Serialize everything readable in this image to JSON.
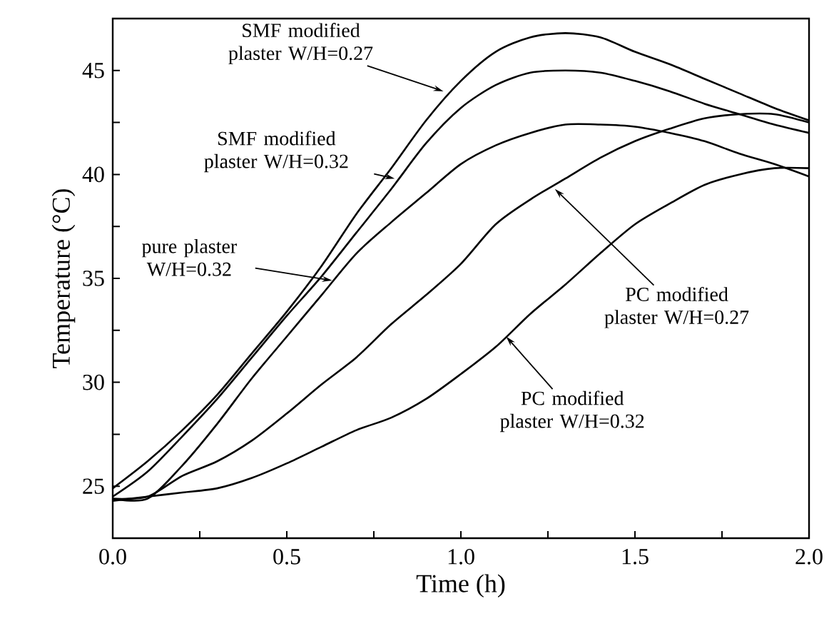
{
  "chart_data": {
    "type": "line",
    "xlabel": "Time (h)",
    "ylabel": "Temperature (°C)",
    "x": [
      0,
      0.1,
      0.2,
      0.3,
      0.4,
      0.5,
      0.6,
      0.7,
      0.8,
      0.9,
      1.0,
      1.1,
      1.2,
      1.3,
      1.4,
      1.5,
      1.6,
      1.7,
      1.8,
      1.9,
      2.0
    ],
    "series": [
      {
        "color": "#000000",
        "values": [
          24.9,
          26.2,
          27.7,
          29.4,
          31.4,
          33.4,
          35.6,
          38.1,
          40.3,
          42.6,
          44.5,
          45.9,
          46.6,
          46.8,
          46.6,
          45.9,
          45.3,
          44.6,
          43.9,
          43.2,
          42.6
        ]
      },
      {
        "color": "#000000",
        "values": [
          24.5,
          25.7,
          27.4,
          29.2,
          31.2,
          33.2,
          35.1,
          37.2,
          39.3,
          41.5,
          43.2,
          44.3,
          44.9,
          45.0,
          44.9,
          44.5,
          44.0,
          43.4,
          42.9,
          42.4,
          42.0
        ]
      },
      {
        "color": "#000000",
        "values": [
          24.4,
          24.4,
          26.0,
          28.0,
          30.2,
          32.2,
          34.2,
          36.2,
          37.7,
          39.1,
          40.5,
          41.4,
          42.0,
          42.4,
          42.4,
          42.3,
          42.0,
          41.6,
          41.0,
          40.5,
          39.9
        ]
      },
      {
        "color": "#000000",
        "values": [
          24.4,
          24.5,
          25.5,
          26.2,
          27.2,
          28.5,
          29.9,
          31.2,
          32.8,
          34.2,
          35.7,
          37.6,
          38.8,
          39.8,
          40.8,
          41.6,
          42.2,
          42.7,
          42.9,
          42.9,
          42.5
        ]
      },
      {
        "color": "#000000",
        "values": [
          24.3,
          24.5,
          24.7,
          24.9,
          25.4,
          26.1,
          26.9,
          27.7,
          28.3,
          29.2,
          30.4,
          31.7,
          33.3,
          34.7,
          36.2,
          37.6,
          38.6,
          39.5,
          40.0,
          40.3,
          40.3
        ]
      }
    ],
    "xlim": [
      0,
      2.0
    ],
    "ylim": [
      22.5,
      47.5
    ],
    "xticks": [
      {
        "value": 0,
        "label": "0.0"
      },
      {
        "value": 0.25,
        "label": null
      },
      {
        "value": 0.5,
        "label": "0.5"
      },
      {
        "value": 0.75,
        "label": null
      },
      {
        "value": 1.0,
        "label": "1.0"
      },
      {
        "value": 1.25,
        "label": null
      },
      {
        "value": 1.5,
        "label": "1.5"
      },
      {
        "value": 1.75,
        "label": null
      },
      {
        "value": 2.0,
        "label": "2.0"
      }
    ],
    "yticks": [
      {
        "value": 22.5,
        "label": null
      },
      25,
      {
        "value": 27.5,
        "label": null
      },
      30,
      {
        "value": 32.5,
        "label": null
      },
      35,
      {
        "value": 37.5,
        "label": null
      },
      40,
      {
        "value": 42.5,
        "label": null
      },
      45,
      {
        "value": 47.5,
        "label": null
      }
    ],
    "annotations": [
      {
        "text": "SMF modified plaster W/H=0.27",
        "x": 0.95,
        "y": 44.0
      },
      {
        "text": "SMF modified plaster W/H=0.32",
        "x": 0.81,
        "y": 39.8
      },
      {
        "text": "pure plaster W/H=0.32",
        "x": 0.63,
        "y": 34.9
      },
      {
        "text": "PC modified plaster W/H=0.27",
        "x": 1.27,
        "y": 39.3
      },
      {
        "text": "PC modified plaster W/H=0.32",
        "x": 1.13,
        "y": 32.2
      }
    ],
    "grid": false,
    "marker": "none",
    "line_style": "solid"
  }
}
